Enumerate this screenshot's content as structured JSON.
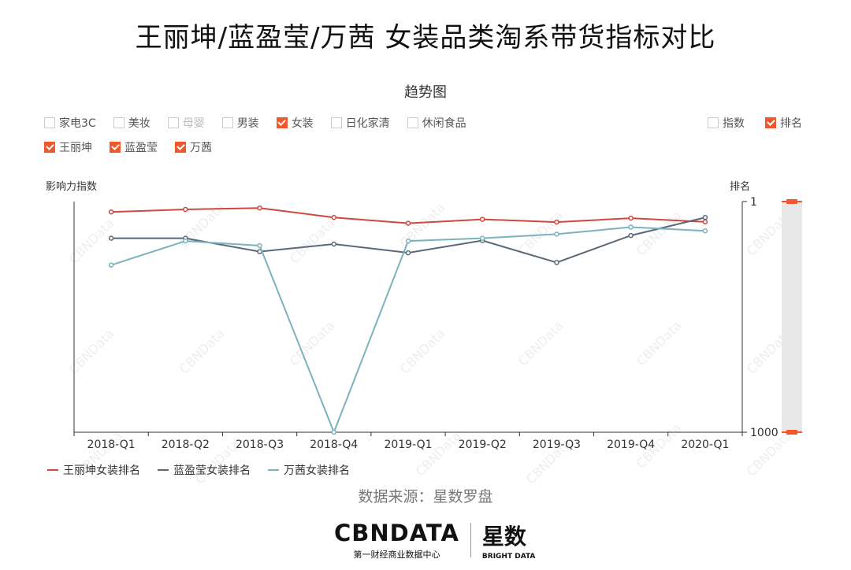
{
  "title": "王丽坤/蓝盈莹/万茜 女装品类淘系带货指标对比",
  "subtitle": "趋势图",
  "category_filters": [
    {
      "label": "家电3C",
      "checked": false,
      "disabled": false
    },
    {
      "label": "美妆",
      "checked": false,
      "disabled": false
    },
    {
      "label": "母婴",
      "checked": false,
      "disabled": true
    },
    {
      "label": "男装",
      "checked": false,
      "disabled": false
    },
    {
      "label": "女装",
      "checked": true,
      "disabled": false
    },
    {
      "label": "日化家清",
      "checked": false,
      "disabled": false
    },
    {
      "label": "休闲食品",
      "checked": false,
      "disabled": false
    }
  ],
  "metric_filters": [
    {
      "label": "指数",
      "checked": false
    },
    {
      "label": "排名",
      "checked": true
    }
  ],
  "person_filters": [
    {
      "label": "王丽坤",
      "checked": true
    },
    {
      "label": "蓝盈莹",
      "checked": true
    },
    {
      "label": "万茜",
      "checked": true
    }
  ],
  "left_axis_label": "影响力指数",
  "right_axis_label": "排名",
  "source": "数据来源：星数罗盘",
  "logo": {
    "main": "CBNDATA",
    "sub": "第一财经商业数据中心",
    "brand": "星数",
    "brand_sub": "BRIGHT DATA"
  },
  "watermark": "CBNData",
  "chart_data": {
    "type": "line",
    "categories": [
      "2018-Q1",
      "2018-Q2",
      "2018-Q3",
      "2018-Q4",
      "2019-Q1",
      "2019-Q2",
      "2019-Q3",
      "2019-Q4",
      "2020-Q1"
    ],
    "y_axis": {
      "label": "排名",
      "min": 1,
      "max": 1000,
      "ticks": [
        1,
        1000
      ],
      "inverted": true
    },
    "series": [
      {
        "name": "王丽坤女装排名",
        "color": "#d0473d",
        "values": [
          46,
          35,
          29,
          70,
          95,
          78,
          90,
          73,
          89
        ]
      },
      {
        "name": "蓝盈莹女装排名",
        "color": "#5a6877",
        "values": [
          160,
          160,
          218,
          185,
          223,
          170,
          265,
          148,
          70
        ]
      },
      {
        "name": "万茜女装排名",
        "color": "#7ab3bd",
        "values": [
          276,
          172,
          192,
          1000,
          172,
          160,
          142,
          112,
          128
        ]
      }
    ]
  }
}
